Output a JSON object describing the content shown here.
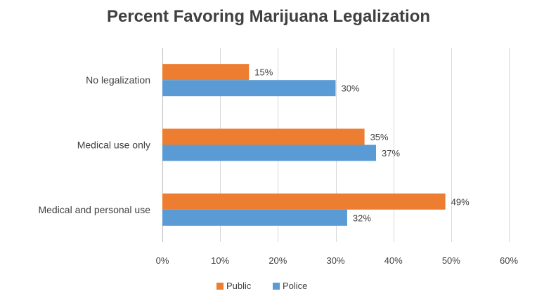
{
  "chart_data": {
    "type": "bar",
    "orientation": "horizontal",
    "title": "Percent Favoring Marijuana Legalization",
    "categories": [
      "No legalization",
      "Medical use only",
      "Medical and personal use"
    ],
    "series": [
      {
        "name": "Public",
        "values": [
          15,
          35,
          49
        ],
        "labels": [
          "15%",
          "35%",
          "49%"
        ],
        "color": "#ed7d31"
      },
      {
        "name": "Police",
        "values": [
          30,
          37,
          32
        ],
        "labels": [
          "30%",
          "37%",
          "32%"
        ],
        "color": "#5b9bd5"
      }
    ],
    "xlim": [
      0,
      60
    ],
    "x_ticks": [
      0,
      10,
      20,
      30,
      40,
      50,
      60
    ],
    "x_tick_labels": [
      "0%",
      "10%",
      "20%",
      "30%",
      "40%",
      "50%",
      "60%"
    ],
    "grid": true,
    "legend_position": "bottom"
  }
}
